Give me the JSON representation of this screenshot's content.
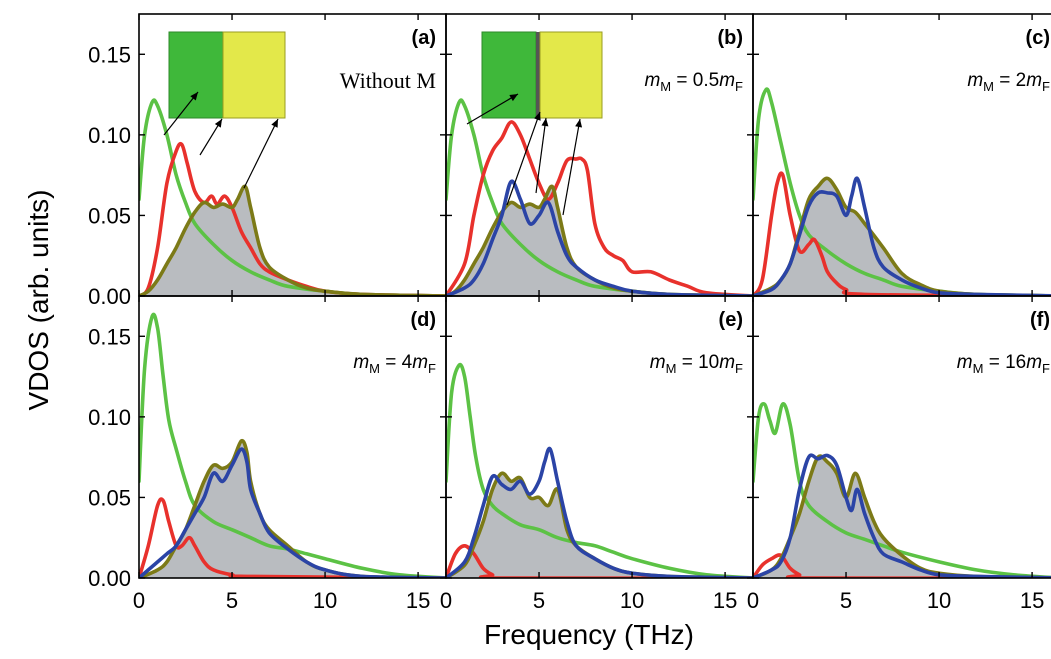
{
  "figure": {
    "ylabel": "VDOS (arb. units)",
    "xlabel": "Frequency (THz)"
  },
  "colors": {
    "green": "#5cc245",
    "red": "#e8312c",
    "olive": "#7c7a17",
    "blue": "#2b44a6",
    "shade": "#b9bcc0",
    "inset_green": "#3fb83a",
    "inset_yellow": "#e3e84a"
  },
  "chart_data": [
    {
      "type": "area",
      "panel": "(a)",
      "label_plain": "Without M",
      "xlim": [
        0,
        16.5
      ],
      "ylim": [
        0,
        0.175
      ],
      "xticks": [
        "0",
        "5",
        "10",
        "15"
      ],
      "yticks": [
        "0.00",
        "0.05",
        "0.10",
        "0.15"
      ],
      "inset": true,
      "series": [
        {
          "color": "green",
          "x": [
            0,
            0.3,
            0.7,
            1.0,
            1.5,
            2,
            2.5,
            3,
            4,
            5,
            6,
            7,
            8,
            10,
            12,
            16.5
          ],
          "y": [
            0.06,
            0.1,
            0.12,
            0.118,
            0.1,
            0.075,
            0.058,
            0.045,
            0.032,
            0.022,
            0.015,
            0.01,
            0.006,
            0.003,
            0.001,
            0
          ]
        },
        {
          "color": "red",
          "x": [
            0,
            0.5,
            1,
            1.5,
            2,
            2.3,
            2.6,
            3,
            3.5,
            3.9,
            4.2,
            4.6,
            5,
            5.5,
            6,
            6.5,
            7,
            8,
            9,
            10,
            12,
            16.5
          ],
          "y": [
            0,
            0.005,
            0.03,
            0.07,
            0.09,
            0.094,
            0.082,
            0.065,
            0.058,
            0.062,
            0.057,
            0.062,
            0.055,
            0.04,
            0.03,
            0.02,
            0.015,
            0.01,
            0.006,
            0.003,
            0.001,
            0
          ]
        },
        {
          "color": "olive",
          "shaded": true,
          "x": [
            0,
            0.5,
            1,
            1.5,
            2,
            2.5,
            3,
            3.5,
            4,
            4.5,
            5,
            5.3,
            5.7,
            6,
            6.5,
            7,
            8,
            9,
            10,
            12,
            16.5
          ],
          "y": [
            0,
            0.003,
            0.01,
            0.02,
            0.03,
            0.042,
            0.052,
            0.058,
            0.055,
            0.057,
            0.055,
            0.06,
            0.068,
            0.055,
            0.03,
            0.018,
            0.01,
            0.005,
            0.003,
            0.001,
            0
          ]
        }
      ]
    },
    {
      "type": "area",
      "panel": "(b)",
      "label_m": "m",
      "label_msub": "M",
      "label_rest": " = 0.5",
      "label_m2": "m",
      "label_m2sub": "F",
      "xlim": [
        0,
        16.5
      ],
      "ylim": [
        0,
        0.175
      ],
      "xticks": [
        "0",
        "5",
        "10",
        "15"
      ],
      "yticks": [],
      "inset": true,
      "series": [
        {
          "color": "green",
          "x": [
            0,
            0.3,
            0.7,
            1.0,
            1.5,
            2,
            2.5,
            3,
            4,
            5,
            6,
            7,
            8,
            10,
            12,
            16.5
          ],
          "y": [
            0.06,
            0.1,
            0.12,
            0.118,
            0.1,
            0.075,
            0.058,
            0.045,
            0.032,
            0.022,
            0.015,
            0.01,
            0.006,
            0.003,
            0.001,
            0
          ]
        },
        {
          "color": "red",
          "x": [
            0,
            1,
            1.5,
            2,
            2.5,
            3,
            3.5,
            4,
            4.5,
            5,
            5.5,
            6,
            6.5,
            7,
            7.3,
            7.6,
            8,
            8.5,
            9,
            9.5,
            10,
            11,
            12,
            13,
            14,
            16.5
          ],
          "y": [
            0,
            0.02,
            0.05,
            0.075,
            0.09,
            0.098,
            0.108,
            0.1,
            0.085,
            0.07,
            0.06,
            0.07,
            0.084,
            0.085,
            0.085,
            0.078,
            0.045,
            0.03,
            0.025,
            0.022,
            0.015,
            0.015,
            0.01,
            0.006,
            0.002,
            0
          ]
        },
        {
          "color": "olive",
          "shaded": true,
          "x": [
            0,
            0.5,
            1,
            1.5,
            2,
            2.5,
            3,
            3.5,
            4,
            4.5,
            5,
            5.3,
            5.7,
            6,
            6.5,
            7,
            8,
            9,
            10,
            12,
            16.5
          ],
          "y": [
            0,
            0.003,
            0.01,
            0.02,
            0.03,
            0.042,
            0.052,
            0.058,
            0.055,
            0.057,
            0.055,
            0.06,
            0.068,
            0.055,
            0.03,
            0.018,
            0.01,
            0.005,
            0.003,
            0.001,
            0
          ]
        },
        {
          "color": "blue",
          "x": [
            0,
            1,
            1.5,
            2,
            2.5,
            3,
            3.5,
            4,
            4.5,
            5,
            5.5,
            6,
            6.5,
            7,
            8,
            9,
            10,
            12,
            16.5
          ],
          "y": [
            0,
            0.005,
            0.01,
            0.02,
            0.035,
            0.05,
            0.071,
            0.06,
            0.045,
            0.05,
            0.058,
            0.04,
            0.025,
            0.018,
            0.01,
            0.006,
            0.003,
            0.001,
            0
          ]
        }
      ]
    },
    {
      "type": "area",
      "panel": "(c)",
      "label_m": "m",
      "label_msub": "M",
      "label_rest": " = 2",
      "label_m2": "m",
      "label_m2sub": "F",
      "xlim": [
        0,
        16.5
      ],
      "ylim": [
        0,
        0.175
      ],
      "xticks": [
        "0",
        "5",
        "10",
        "15"
      ],
      "yticks": [],
      "inset": false,
      "series": [
        {
          "color": "green",
          "x": [
            0,
            0.3,
            0.7,
            1.0,
            1.5,
            2,
            2.5,
            3,
            4,
            5,
            6,
            7,
            8,
            10,
            12,
            16.5
          ],
          "y": [
            0.06,
            0.11,
            0.128,
            0.12,
            0.095,
            0.07,
            0.05,
            0.038,
            0.028,
            0.02,
            0.014,
            0.01,
            0.006,
            0.003,
            0.001,
            0
          ]
        },
        {
          "color": "red",
          "x": [
            0,
            0.5,
            1,
            1.3,
            1.6,
            2,
            2.5,
            3,
            3.3,
            3.7,
            4,
            4.5,
            5,
            6,
            16.5
          ],
          "y": [
            0,
            0.01,
            0.05,
            0.07,
            0.075,
            0.05,
            0.028,
            0.032,
            0.035,
            0.025,
            0.015,
            0.008,
            0.004,
            0.001,
            0
          ]
        },
        {
          "color": "olive",
          "shaded": true,
          "x": [
            0,
            1,
            1.5,
            2,
            2.5,
            3,
            3.5,
            4,
            4.5,
            5,
            5.5,
            6,
            7,
            8,
            9,
            10,
            12,
            16.5
          ],
          "y": [
            0,
            0.005,
            0.01,
            0.02,
            0.04,
            0.06,
            0.068,
            0.073,
            0.066,
            0.055,
            0.052,
            0.045,
            0.03,
            0.014,
            0.007,
            0.003,
            0.001,
            0
          ]
        },
        {
          "color": "blue",
          "x": [
            0,
            1,
            1.5,
            2,
            2.5,
            3,
            3.5,
            4,
            4.5,
            5,
            5.3,
            5.6,
            6,
            6.5,
            7,
            8,
            9,
            10,
            12,
            16.5
          ],
          "y": [
            0,
            0.004,
            0.01,
            0.02,
            0.038,
            0.056,
            0.064,
            0.064,
            0.062,
            0.05,
            0.062,
            0.073,
            0.055,
            0.03,
            0.018,
            0.01,
            0.005,
            0.002,
            0.001,
            0
          ]
        }
      ]
    },
    {
      "type": "area",
      "panel": "(d)",
      "label_m": "m",
      "label_msub": "M",
      "label_rest": " = 4",
      "label_m2": "m",
      "label_m2sub": "F",
      "xlim": [
        0,
        16.5
      ],
      "ylim": [
        0,
        0.175
      ],
      "xticks": [
        "0",
        "5",
        "10",
        "15"
      ],
      "yticks": [
        "0.00",
        "0.05",
        "0.10",
        "0.15"
      ],
      "inset": false,
      "series": [
        {
          "color": "green",
          "x": [
            0,
            0.3,
            0.7,
            1.0,
            1.3,
            1.6,
            2,
            2.5,
            3,
            4,
            5,
            6,
            7,
            8,
            9,
            10,
            12,
            14,
            16.5
          ],
          "y": [
            0.06,
            0.13,
            0.162,
            0.155,
            0.125,
            0.098,
            0.08,
            0.06,
            0.045,
            0.035,
            0.03,
            0.025,
            0.02,
            0.018,
            0.015,
            0.012,
            0.006,
            0.002,
            0
          ]
        },
        {
          "color": "red",
          "x": [
            0,
            0.5,
            1,
            1.3,
            1.6,
            2,
            2.3,
            2.7,
            3,
            3.5,
            4,
            5,
            6,
            16.5
          ],
          "y": [
            0,
            0.02,
            0.045,
            0.048,
            0.035,
            0.02,
            0.02,
            0.025,
            0.02,
            0.01,
            0.005,
            0.002,
            0.001,
            0
          ]
        },
        {
          "color": "olive",
          "shaded": true,
          "x": [
            0,
            1,
            1.5,
            2,
            2.5,
            3,
            3.5,
            4,
            4.5,
            5,
            5.5,
            5.8,
            6,
            6.5,
            7,
            8,
            9,
            10,
            12,
            16.5
          ],
          "y": [
            0,
            0.005,
            0.01,
            0.02,
            0.03,
            0.045,
            0.06,
            0.07,
            0.068,
            0.072,
            0.085,
            0.078,
            0.06,
            0.04,
            0.03,
            0.02,
            0.01,
            0.005,
            0.001,
            0
          ]
        },
        {
          "color": "blue",
          "x": [
            0,
            0.5,
            1,
            1.5,
            2,
            2.5,
            3,
            3.5,
            4,
            4.5,
            5,
            5.5,
            5.8,
            6,
            6.5,
            7,
            8,
            9,
            10,
            12,
            16.5
          ],
          "y": [
            0,
            0.005,
            0.01,
            0.015,
            0.02,
            0.03,
            0.04,
            0.05,
            0.065,
            0.06,
            0.07,
            0.08,
            0.072,
            0.055,
            0.04,
            0.028,
            0.018,
            0.01,
            0.005,
            0.001,
            0
          ]
        }
      ]
    },
    {
      "type": "area",
      "panel": "(e)",
      "label_m": "m",
      "label_msub": "M",
      "label_rest": " = 10",
      "label_m2": "m",
      "label_m2sub": "F",
      "xlim": [
        0,
        16.5
      ],
      "ylim": [
        0,
        0.175
      ],
      "xticks": [
        "0",
        "5",
        "10",
        "15"
      ],
      "yticks": [],
      "inset": false,
      "series": [
        {
          "color": "green",
          "x": [
            0,
            0.3,
            0.7,
            1.0,
            1.3,
            1.6,
            2,
            2.5,
            3,
            4,
            5,
            6,
            7,
            8,
            9,
            10,
            12,
            14,
            16.5
          ],
          "y": [
            0.06,
            0.115,
            0.132,
            0.125,
            0.1,
            0.075,
            0.055,
            0.045,
            0.04,
            0.033,
            0.03,
            0.025,
            0.022,
            0.02,
            0.016,
            0.012,
            0.006,
            0.002,
            0
          ]
        },
        {
          "color": "red",
          "x": [
            0,
            0.5,
            1,
            1.5,
            2,
            2.5,
            3,
            16.5
          ],
          "y": [
            0,
            0.015,
            0.02,
            0.015,
            0.006,
            0.002,
            0,
            0
          ]
        },
        {
          "color": "olive",
          "shaded": true,
          "x": [
            0,
            1,
            1.5,
            2,
            2.5,
            3,
            3.5,
            4,
            4.5,
            5,
            5.5,
            6,
            6.5,
            7,
            8,
            9,
            10,
            12,
            16.5
          ],
          "y": [
            0,
            0.008,
            0.02,
            0.035,
            0.055,
            0.065,
            0.06,
            0.062,
            0.05,
            0.05,
            0.045,
            0.055,
            0.03,
            0.02,
            0.012,
            0.006,
            0.003,
            0.001,
            0
          ]
        },
        {
          "color": "blue",
          "x": [
            0,
            1,
            1.5,
            2,
            2.5,
            3,
            3.5,
            4,
            4.5,
            5,
            5.3,
            5.6,
            6,
            6.5,
            7,
            8,
            9,
            10,
            12,
            16.5
          ],
          "y": [
            0,
            0.01,
            0.025,
            0.045,
            0.063,
            0.058,
            0.055,
            0.06,
            0.052,
            0.06,
            0.072,
            0.08,
            0.06,
            0.035,
            0.02,
            0.012,
            0.006,
            0.003,
            0.001,
            0
          ]
        }
      ]
    },
    {
      "type": "area",
      "panel": "(f)",
      "label_m": "m",
      "label_msub": "M",
      "label_rest": " = 16",
      "label_m2": "m",
      "label_m2sub": "F",
      "xlim": [
        0,
        16.5
      ],
      "ylim": [
        0,
        0.175
      ],
      "xticks": [
        "0",
        "5",
        "10",
        "15"
      ],
      "yticks": [],
      "inset": false,
      "series": [
        {
          "color": "green",
          "x": [
            0,
            0.3,
            0.6,
            0.9,
            1.2,
            1.6,
            2,
            2.5,
            3,
            4,
            5,
            6,
            7,
            8,
            10,
            12,
            14,
            16.5
          ],
          "y": [
            0.06,
            0.1,
            0.108,
            0.098,
            0.09,
            0.108,
            0.095,
            0.06,
            0.045,
            0.035,
            0.028,
            0.024,
            0.02,
            0.016,
            0.01,
            0.005,
            0.002,
            0
          ]
        },
        {
          "color": "red",
          "x": [
            0,
            0.5,
            1,
            1.5,
            2,
            2.5,
            3,
            16.5
          ],
          "y": [
            0,
            0.008,
            0.012,
            0.014,
            0.006,
            0.002,
            0,
            0
          ]
        },
        {
          "color": "olive",
          "shaded": true,
          "x": [
            0,
            1,
            1.5,
            2,
            2.5,
            3,
            3.5,
            4,
            4.5,
            5,
            5.5,
            6,
            6.5,
            7,
            8,
            9,
            10,
            12,
            16.5
          ],
          "y": [
            0,
            0.005,
            0.012,
            0.025,
            0.04,
            0.06,
            0.075,
            0.072,
            0.065,
            0.05,
            0.065,
            0.05,
            0.035,
            0.025,
            0.014,
            0.006,
            0.003,
            0.001,
            0
          ]
        },
        {
          "color": "blue",
          "x": [
            0,
            1,
            1.5,
            2,
            2.5,
            3,
            3.5,
            4,
            4.5,
            5,
            5.3,
            5.6,
            6,
            6.5,
            7,
            8,
            9,
            10,
            12,
            16.5
          ],
          "y": [
            0,
            0.005,
            0.01,
            0.025,
            0.055,
            0.075,
            0.074,
            0.076,
            0.07,
            0.05,
            0.042,
            0.055,
            0.04,
            0.025,
            0.015,
            0.01,
            0.005,
            0.002,
            0.001,
            0
          ]
        }
      ]
    }
  ]
}
